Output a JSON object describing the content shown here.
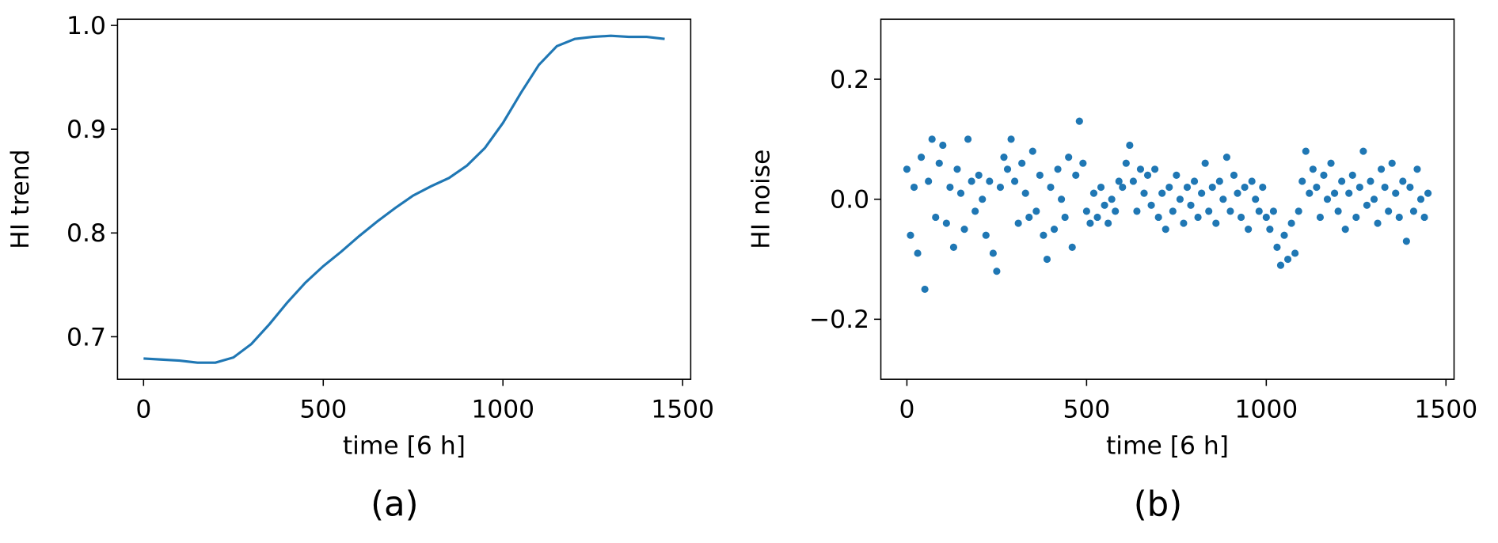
{
  "chart_data": [
    {
      "type": "line",
      "caption": "(a)",
      "xlabel": "time [6 h]",
      "ylabel": "HI trend",
      "color": "#1f77b4",
      "x": [
        0,
        50,
        100,
        150,
        200,
        250,
        300,
        350,
        400,
        450,
        500,
        550,
        600,
        650,
        700,
        750,
        800,
        850,
        900,
        950,
        1000,
        1050,
        1100,
        1150,
        1200,
        1250,
        1300,
        1350,
        1400,
        1450
      ],
      "values": [
        0.679,
        0.678,
        0.677,
        0.675,
        0.675,
        0.68,
        0.693,
        0.712,
        0.733,
        0.752,
        0.768,
        0.782,
        0.797,
        0.811,
        0.824,
        0.836,
        0.845,
        0.853,
        0.865,
        0.882,
        0.906,
        0.935,
        0.962,
        0.98,
        0.987,
        0.989,
        0.99,
        0.989,
        0.989,
        0.987
      ],
      "xlim": [
        -72.5,
        1522.5
      ],
      "xticks": [
        0,
        500,
        1000,
        1500
      ],
      "ylim": [
        0.659,
        1.006
      ],
      "yticks": [
        0.7,
        0.8,
        0.9,
        {
          "value": 1.0,
          "label": "1.0"
        }
      ]
    },
    {
      "type": "scatter",
      "caption": "(b)",
      "xlabel": "time [6 h]",
      "ylabel": "HI noise",
      "color": "#1f77b4",
      "x": [
        0,
        10,
        20,
        30,
        40,
        50,
        60,
        70,
        80,
        90,
        100,
        110,
        120,
        130,
        140,
        150,
        160,
        170,
        180,
        190,
        200,
        210,
        220,
        230,
        240,
        250,
        260,
        270,
        280,
        290,
        300,
        310,
        320,
        330,
        340,
        350,
        360,
        370,
        380,
        390,
        400,
        410,
        420,
        430,
        440,
        450,
        460,
        470,
        480,
        490,
        500,
        510,
        520,
        530,
        540,
        550,
        560,
        570,
        580,
        590,
        600,
        610,
        620,
        630,
        640,
        650,
        660,
        670,
        680,
        690,
        700,
        710,
        720,
        730,
        740,
        750,
        760,
        770,
        780,
        790,
        800,
        810,
        820,
        830,
        840,
        850,
        860,
        870,
        880,
        890,
        900,
        910,
        920,
        930,
        940,
        950,
        960,
        970,
        980,
        990,
        1000,
        1010,
        1020,
        1030,
        1040,
        1050,
        1060,
        1070,
        1080,
        1090,
        1100,
        1110,
        1120,
        1130,
        1140,
        1150,
        1160,
        1170,
        1180,
        1190,
        1200,
        1210,
        1220,
        1230,
        1240,
        1250,
        1260,
        1270,
        1280,
        1290,
        1300,
        1310,
        1320,
        1330,
        1340,
        1350,
        1360,
        1370,
        1380,
        1390,
        1400,
        1410,
        1420,
        1430,
        1440,
        1450
      ],
      "values": [
        0.05,
        -0.06,
        0.02,
        -0.09,
        0.07,
        -0.15,
        0.03,
        0.1,
        -0.03,
        0.06,
        0.09,
        -0.04,
        0.02,
        -0.08,
        0.05,
        0.01,
        -0.05,
        0.1,
        0.03,
        -0.02,
        0.04,
        0.0,
        -0.06,
        0.03,
        -0.09,
        -0.12,
        0.02,
        0.07,
        0.05,
        0.1,
        0.03,
        -0.04,
        0.06,
        0.01,
        -0.03,
        0.08,
        -0.02,
        0.04,
        -0.06,
        -0.1,
        0.02,
        -0.05,
        0.05,
        0.0,
        -0.03,
        0.07,
        -0.08,
        0.04,
        0.13,
        0.06,
        -0.02,
        -0.04,
        0.01,
        -0.03,
        0.02,
        -0.01,
        -0.04,
        0.0,
        -0.02,
        0.03,
        0.02,
        0.06,
        0.09,
        0.03,
        -0.02,
        0.05,
        0.01,
        0.04,
        -0.01,
        0.05,
        -0.03,
        0.01,
        -0.05,
        0.02,
        -0.02,
        0.04,
        0.0,
        -0.04,
        0.02,
        -0.01,
        0.03,
        -0.03,
        0.01,
        0.06,
        -0.02,
        0.02,
        -0.04,
        0.03,
        0.0,
        0.07,
        -0.02,
        0.04,
        0.01,
        -0.03,
        0.02,
        -0.05,
        0.03,
        0.0,
        -0.02,
        0.02,
        -0.03,
        -0.05,
        -0.02,
        -0.08,
        -0.11,
        -0.06,
        -0.1,
        -0.04,
        -0.09,
        -0.02,
        0.03,
        0.08,
        0.01,
        0.05,
        0.02,
        -0.03,
        0.04,
        0.0,
        0.06,
        0.01,
        -0.02,
        0.03,
        -0.05,
        0.01,
        0.04,
        -0.03,
        0.02,
        0.08,
        -0.01,
        0.03,
        0.0,
        -0.04,
        0.05,
        0.02,
        -0.02,
        0.06,
        0.01,
        -0.03,
        0.03,
        -0.07,
        0.02,
        -0.02,
        0.05,
        0.0,
        -0.03,
        0.01
      ],
      "xlim": [
        -72.5,
        1522.5
      ],
      "xticks": [
        0,
        500,
        1000,
        1500
      ],
      "ylim": [
        -0.3,
        0.3
      ],
      "yticks": [
        {
          "value": -0.2,
          "label": "−0.2"
        },
        {
          "value": 0,
          "label": "0.0"
        },
        0.2
      ]
    }
  ]
}
